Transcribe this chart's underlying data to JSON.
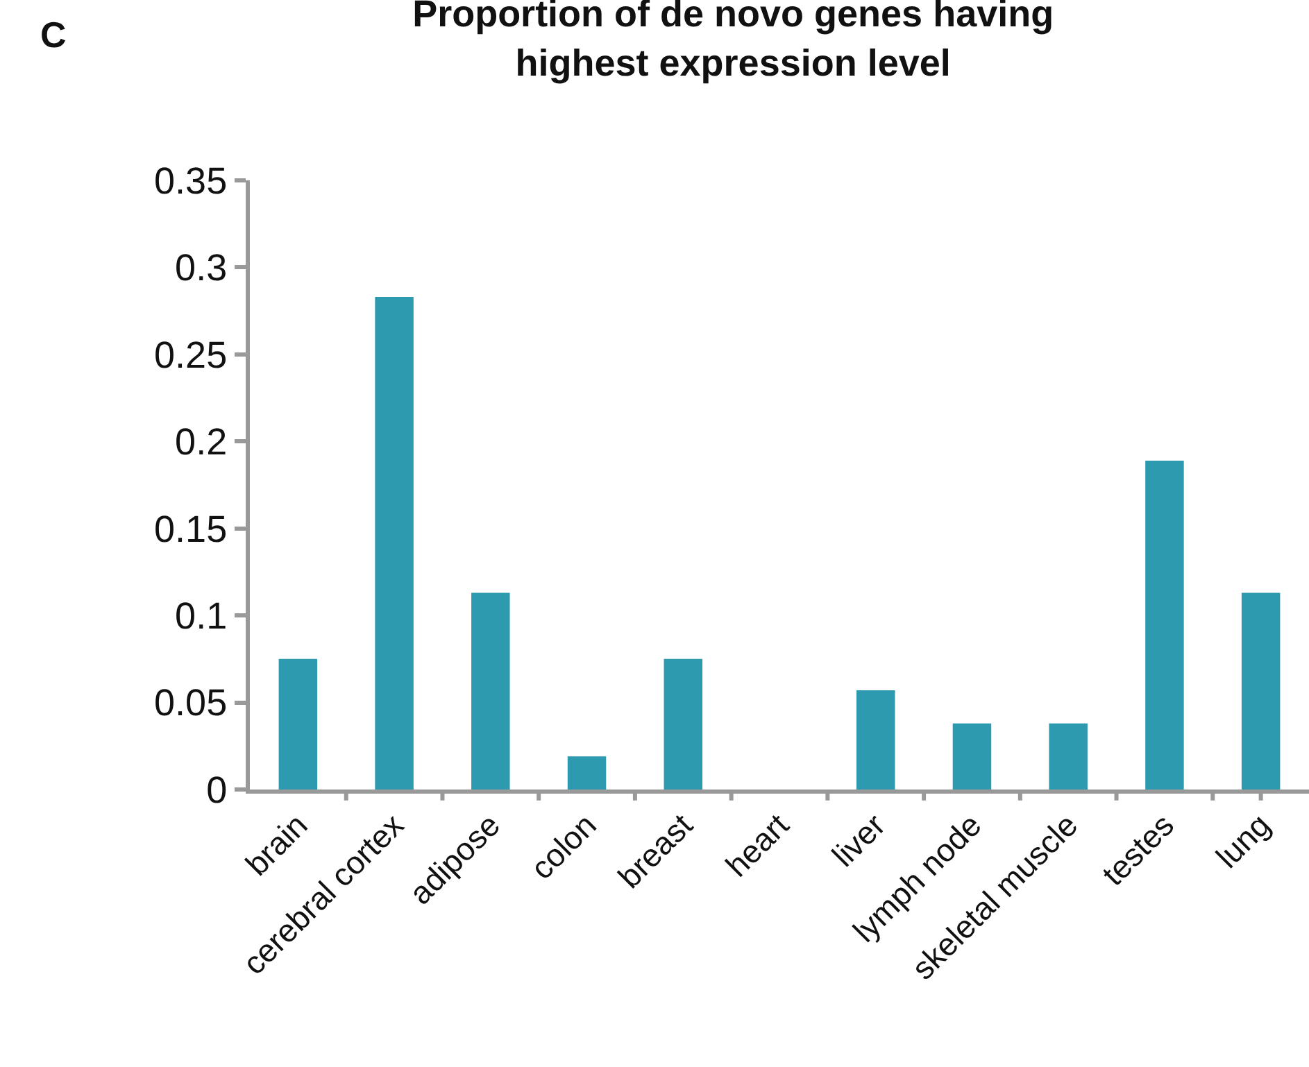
{
  "chart_data": {
    "type": "bar",
    "title": "Proportion of de novo genes having highest expression level",
    "categories": [
      "brain",
      "cerebral cortex",
      "adipose",
      "colon",
      "breast",
      "heart",
      "liver",
      "lymph node",
      "skeletal muscle",
      "testes",
      "lung"
    ],
    "values": [
      0.075,
      0.283,
      0.113,
      0.019,
      0.075,
      0,
      0.057,
      0.038,
      0.038,
      0.189,
      0.113
    ],
    "color": "#2e9ab0",
    "ylim": [
      0,
      0.35
    ],
    "yticks": [
      0,
      0.05,
      0.1,
      0.15,
      0.2,
      0.25,
      0.3,
      0.35
    ],
    "grid": false,
    "legend": false,
    "annotations": [
      "C"
    ]
  }
}
